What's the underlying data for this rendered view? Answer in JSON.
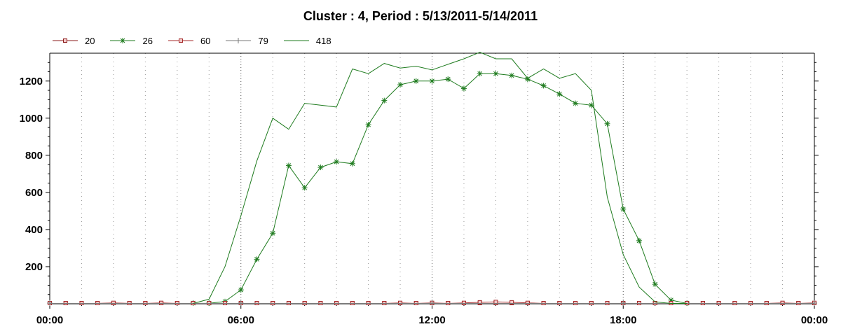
{
  "chart_data": {
    "type": "line",
    "title": "Cluster : 4, Period : 5/13/2011-5/14/2011",
    "xlabel": "",
    "ylabel": "",
    "x_range_hours": [
      0,
      24
    ],
    "ylim": [
      0,
      1350
    ],
    "grid": true,
    "legend_position": "top-left",
    "x_ticks": [
      {
        "hour": 0,
        "label": "00:00"
      },
      {
        "hour": 6,
        "label": "06:00"
      },
      {
        "hour": 12,
        "label": "12:00"
      },
      {
        "hour": 18,
        "label": "18:00"
      },
      {
        "hour": 24,
        "label": "00:00"
      }
    ],
    "y_ticks": [
      200,
      400,
      600,
      800,
      1000,
      1200
    ],
    "series": [
      {
        "name": "20",
        "color": "#8b1a1a",
        "marker": "square",
        "x": [
          0,
          0.5,
          1,
          1.5,
          2,
          2.5,
          3,
          3.5,
          4,
          4.5,
          5,
          5.5,
          6,
          6.5,
          7,
          7.5,
          8,
          8.5,
          9,
          9.5,
          10,
          10.5,
          11,
          11.5,
          12,
          12.5,
          13,
          13.5,
          14,
          14.5,
          15,
          15.5,
          16,
          16.5,
          17,
          17.5,
          18,
          18.5,
          19,
          19.5,
          20,
          20.5,
          21,
          21.5,
          22,
          22.5,
          23,
          23.5,
          24
        ],
        "y": [
          2,
          2,
          2,
          2,
          3,
          2,
          2,
          2,
          2,
          2,
          2,
          2,
          2,
          2,
          2,
          2,
          2,
          2,
          2,
          2,
          2,
          2,
          2,
          2,
          2,
          2,
          2,
          2,
          2,
          2,
          2,
          2,
          2,
          2,
          2,
          2,
          2,
          2,
          2,
          2,
          2,
          2,
          2,
          2,
          2,
          2,
          2,
          2,
          2
        ]
      },
      {
        "name": "26",
        "color": "#1e7b1e",
        "marker": "asterisk",
        "x": [
          4.5,
          5,
          5.5,
          6,
          6.5,
          7,
          7.5,
          8,
          8.5,
          9,
          9.5,
          10,
          10.5,
          11,
          11.5,
          12,
          12.5,
          13,
          13.5,
          14,
          14.5,
          15,
          15.5,
          16,
          16.5,
          17,
          17.5,
          18,
          18.5,
          19,
          19.5,
          20
        ],
        "y": [
          0,
          3,
          12,
          75,
          240,
          380,
          745,
          625,
          735,
          765,
          755,
          965,
          1095,
          1180,
          1200,
          1200,
          1210,
          1160,
          1240,
          1240,
          1230,
          1210,
          1175,
          1130,
          1080,
          1070,
          970,
          510,
          340,
          105,
          20,
          0
        ]
      },
      {
        "name": "60",
        "color": "#a52a2a",
        "marker": "square",
        "x": [
          0,
          0.5,
          1,
          1.5,
          2,
          2.5,
          3,
          3.5,
          4,
          4.5,
          5,
          5.5,
          6,
          6.5,
          7,
          7.5,
          8,
          8.5,
          9,
          9.5,
          10,
          10.5,
          11,
          11.5,
          12,
          12.5,
          13,
          13.5,
          14,
          14.5,
          15,
          15.5,
          16,
          16.5,
          17,
          17.5,
          18,
          18.5,
          19,
          19.5,
          20,
          20.5,
          21,
          21.5,
          22,
          22.5,
          23,
          23.5,
          24
        ],
        "y": [
          2,
          2,
          2,
          2,
          5,
          2,
          2,
          5,
          2,
          2,
          2,
          2,
          2,
          2,
          2,
          2,
          2,
          2,
          2,
          2,
          2,
          2,
          5,
          2,
          5,
          2,
          5,
          8,
          10,
          8,
          5,
          2,
          2,
          2,
          2,
          2,
          2,
          2,
          2,
          2,
          2,
          2,
          2,
          2,
          2,
          2,
          5,
          2,
          5
        ]
      },
      {
        "name": "79",
        "color": "#7a7a7a",
        "marker": "plus",
        "x": [
          0,
          6,
          12,
          18,
          24
        ],
        "y": [
          0,
          0,
          0,
          0,
          0
        ]
      },
      {
        "name": "418",
        "color": "#1e7b1e",
        "marker": "none",
        "x": [
          4.5,
          5,
          5.5,
          6,
          6.5,
          7,
          7.5,
          8,
          8.5,
          9,
          9.5,
          10,
          10.5,
          11,
          11.5,
          12,
          12.5,
          13,
          13.5,
          14,
          14.5,
          15,
          15.5,
          16,
          16.5,
          17,
          17.5,
          18,
          18.5,
          19,
          19.5,
          20
        ],
        "y": [
          0,
          25,
          200,
          475,
          770,
          1000,
          940,
          1080,
          1070,
          1060,
          1265,
          1240,
          1295,
          1270,
          1280,
          1260,
          1290,
          1320,
          1355,
          1320,
          1320,
          1215,
          1265,
          1215,
          1240,
          1150,
          575,
          265,
          90,
          10,
          0,
          0
        ]
      }
    ]
  }
}
